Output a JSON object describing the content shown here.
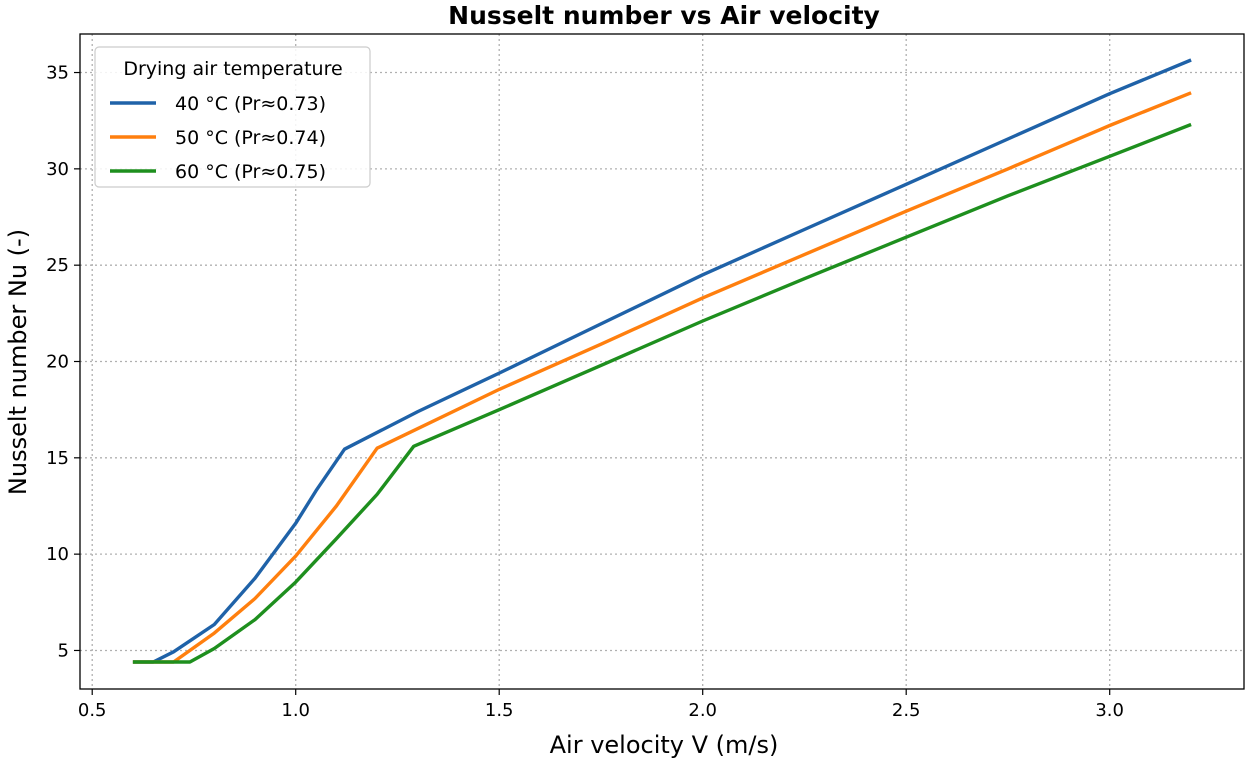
{
  "chart_data": {
    "type": "line",
    "title": "Nusselt number vs Air velocity",
    "xlabel": "Air velocity V (m/s)",
    "ylabel": "Nusselt number Nu (-)",
    "xlim": [
      0.47,
      3.33
    ],
    "ylim": [
      3.0,
      37.0
    ],
    "xticks": [
      0.5,
      1.0,
      1.5,
      2.0,
      2.5,
      3.0
    ],
    "xtick_labels": [
      "0.5",
      "1.0",
      "1.5",
      "2.0",
      "2.5",
      "3.0"
    ],
    "yticks": [
      5,
      10,
      15,
      20,
      25,
      30,
      35
    ],
    "ytick_labels": [
      "5",
      "10",
      "15",
      "20",
      "25",
      "30",
      "35"
    ],
    "grid": true,
    "legend": {
      "title": "Drying air temperature",
      "placement": "top-left"
    },
    "series": [
      {
        "name": "40 °C (Pr≈0.73)",
        "color": "#1f62a8",
        "x": [
          0.6,
          0.65,
          0.7,
          0.8,
          0.9,
          1.0,
          1.05,
          1.12,
          1.3,
          1.5,
          1.75,
          2.0,
          2.25,
          2.5,
          2.75,
          3.0,
          3.2
        ],
        "y": [
          4.4,
          4.4,
          4.93,
          6.35,
          8.75,
          11.6,
          13.3,
          15.45,
          17.4,
          19.4,
          21.95,
          24.5,
          26.85,
          29.2,
          31.55,
          33.9,
          35.65
        ]
      },
      {
        "name": "50 °C (Pr≈0.74)",
        "color": "#ff7f0e",
        "x": [
          0.6,
          0.7,
          0.8,
          0.9,
          1.0,
          1.1,
          1.2,
          1.5,
          1.75,
          2.0,
          2.25,
          2.5,
          2.75,
          3.0,
          3.2
        ],
        "y": [
          4.4,
          4.4,
          5.9,
          7.7,
          9.9,
          12.5,
          15.5,
          18.55,
          20.9,
          23.3,
          25.55,
          27.8,
          30.0,
          32.25,
          33.95
        ]
      },
      {
        "name": "60 °C (Pr≈0.75)",
        "color": "#1e8f1e",
        "x": [
          0.6,
          0.74,
          0.8,
          0.9,
          1.0,
          1.1,
          1.2,
          1.29,
          1.5,
          1.75,
          2.0,
          2.25,
          2.5,
          2.75,
          3.0,
          3.2
        ],
        "y": [
          4.4,
          4.4,
          5.1,
          6.6,
          8.55,
          10.8,
          13.1,
          15.6,
          17.5,
          19.8,
          22.1,
          24.3,
          26.45,
          28.6,
          30.65,
          32.3
        ]
      }
    ]
  }
}
